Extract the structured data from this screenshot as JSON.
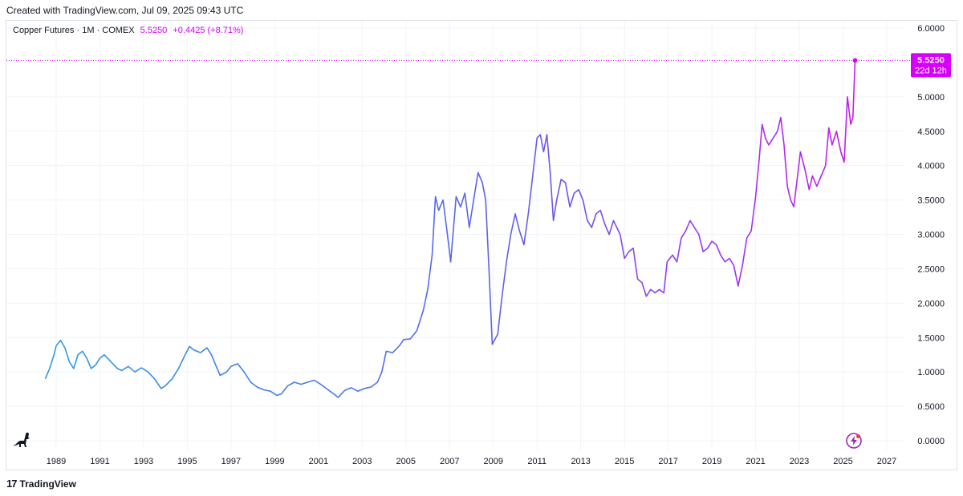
{
  "header": {
    "created_text": "Created with TradingView.com, Jul 09, 2025 09:43 UTC"
  },
  "legend": {
    "symbol": "Copper Futures · 1M · COMEX",
    "price": "5.5250",
    "change": "+0.4425 (+8.71%)"
  },
  "price_label": {
    "price": "5.5250",
    "countdown": "22d 12h"
  },
  "footer": {
    "brand": "TradingView",
    "logo_text": "17"
  },
  "colors": {
    "line_start": "#2e9be6",
    "line_mid": "#5b63ec",
    "line_end": "#c31cf5",
    "price_tag": "#d500f9",
    "grid": "#f0f3fa",
    "axis_text": "#131722"
  },
  "icons": [
    "dino-icon",
    "flash-icon"
  ],
  "chart_data": {
    "type": "line",
    "title": "",
    "xlabel": "",
    "ylabel": "",
    "x_range": [
      1988.0,
      2027.8
    ],
    "ylim": [
      0,
      6
    ],
    "y_ticks": [
      "6.0000",
      "5.5000",
      "5.0000",
      "4.5000",
      "4.0000",
      "3.5000",
      "3.0000",
      "2.5000",
      "2.0000",
      "1.5000",
      "1.0000",
      "0.5000",
      "0.0000"
    ],
    "x_ticks": [
      "1989",
      "1991",
      "1993",
      "1995",
      "1997",
      "1999",
      "2001",
      "2003",
      "2005",
      "2007",
      "2009",
      "2011",
      "2013",
      "2015",
      "2017",
      "2019",
      "2021",
      "2023",
      "2025",
      "2027"
    ],
    "grid": true,
    "legend": "top-left",
    "series": [
      {
        "values": [
          [
            1988.5,
            0.9
          ],
          [
            1988.7,
            1.05
          ],
          [
            1988.9,
            1.25
          ],
          [
            1989.0,
            1.38
          ],
          [
            1989.2,
            1.46
          ],
          [
            1989.4,
            1.35
          ],
          [
            1989.6,
            1.15
          ],
          [
            1989.8,
            1.05
          ],
          [
            1990.0,
            1.25
          ],
          [
            1990.2,
            1.3
          ],
          [
            1990.4,
            1.2
          ],
          [
            1990.6,
            1.05
          ],
          [
            1990.8,
            1.1
          ],
          [
            1991.0,
            1.2
          ],
          [
            1991.2,
            1.25
          ],
          [
            1991.5,
            1.15
          ],
          [
            1991.8,
            1.05
          ],
          [
            1992.0,
            1.02
          ],
          [
            1992.3,
            1.08
          ],
          [
            1992.6,
            1.0
          ],
          [
            1992.9,
            1.06
          ],
          [
            1993.2,
            1.0
          ],
          [
            1993.5,
            0.9
          ],
          [
            1993.8,
            0.76
          ],
          [
            1994.0,
            0.8
          ],
          [
            1994.3,
            0.9
          ],
          [
            1994.6,
            1.05
          ],
          [
            1994.9,
            1.25
          ],
          [
            1995.1,
            1.37
          ],
          [
            1995.3,
            1.32
          ],
          [
            1995.6,
            1.28
          ],
          [
            1995.9,
            1.35
          ],
          [
            1996.1,
            1.25
          ],
          [
            1996.3,
            1.1
          ],
          [
            1996.5,
            0.95
          ],
          [
            1996.8,
            1.0
          ],
          [
            1997.0,
            1.08
          ],
          [
            1997.3,
            1.12
          ],
          [
            1997.6,
            1.0
          ],
          [
            1997.9,
            0.85
          ],
          [
            1998.2,
            0.78
          ],
          [
            1998.5,
            0.74
          ],
          [
            1998.8,
            0.72
          ],
          [
            1999.1,
            0.66
          ],
          [
            1999.3,
            0.68
          ],
          [
            1999.6,
            0.8
          ],
          [
            1999.9,
            0.85
          ],
          [
            2000.2,
            0.82
          ],
          [
            2000.5,
            0.85
          ],
          [
            2000.8,
            0.88
          ],
          [
            2001.1,
            0.82
          ],
          [
            2001.4,
            0.75
          ],
          [
            2001.7,
            0.68
          ],
          [
            2001.9,
            0.63
          ],
          [
            2002.2,
            0.73
          ],
          [
            2002.5,
            0.77
          ],
          [
            2002.8,
            0.72
          ],
          [
            2003.1,
            0.76
          ],
          [
            2003.4,
            0.78
          ],
          [
            2003.7,
            0.85
          ],
          [
            2003.9,
            1.0
          ],
          [
            2004.1,
            1.3
          ],
          [
            2004.4,
            1.28
          ],
          [
            2004.7,
            1.38
          ],
          [
            2004.9,
            1.47
          ],
          [
            2005.2,
            1.48
          ],
          [
            2005.5,
            1.6
          ],
          [
            2005.8,
            1.9
          ],
          [
            2006.0,
            2.2
          ],
          [
            2006.2,
            2.7
          ],
          [
            2006.35,
            3.55
          ],
          [
            2006.5,
            3.35
          ],
          [
            2006.7,
            3.5
          ],
          [
            2006.9,
            3.0
          ],
          [
            2007.05,
            2.6
          ],
          [
            2007.3,
            3.55
          ],
          [
            2007.5,
            3.4
          ],
          [
            2007.7,
            3.6
          ],
          [
            2007.9,
            3.1
          ],
          [
            2008.1,
            3.5
          ],
          [
            2008.3,
            3.9
          ],
          [
            2008.5,
            3.75
          ],
          [
            2008.65,
            3.5
          ],
          [
            2008.8,
            2.5
          ],
          [
            2008.95,
            1.4
          ],
          [
            2009.2,
            1.55
          ],
          [
            2009.4,
            2.1
          ],
          [
            2009.6,
            2.6
          ],
          [
            2009.8,
            3.0
          ],
          [
            2010.0,
            3.3
          ],
          [
            2010.2,
            3.05
          ],
          [
            2010.4,
            2.85
          ],
          [
            2010.6,
            3.3
          ],
          [
            2010.8,
            3.85
          ],
          [
            2011.0,
            4.4
          ],
          [
            2011.15,
            4.45
          ],
          [
            2011.3,
            4.2
          ],
          [
            2011.45,
            4.45
          ],
          [
            2011.6,
            3.9
          ],
          [
            2011.75,
            3.2
          ],
          [
            2011.9,
            3.5
          ],
          [
            2012.1,
            3.8
          ],
          [
            2012.3,
            3.75
          ],
          [
            2012.5,
            3.4
          ],
          [
            2012.7,
            3.6
          ],
          [
            2012.9,
            3.65
          ],
          [
            2013.1,
            3.5
          ],
          [
            2013.3,
            3.2
          ],
          [
            2013.5,
            3.1
          ],
          [
            2013.7,
            3.3
          ],
          [
            2013.9,
            3.35
          ],
          [
            2014.1,
            3.15
          ],
          [
            2014.3,
            3.0
          ],
          [
            2014.5,
            3.2
          ],
          [
            2014.8,
            3.0
          ],
          [
            2015.0,
            2.65
          ],
          [
            2015.2,
            2.75
          ],
          [
            2015.4,
            2.8
          ],
          [
            2015.6,
            2.35
          ],
          [
            2015.8,
            2.3
          ],
          [
            2016.0,
            2.1
          ],
          [
            2016.2,
            2.2
          ],
          [
            2016.4,
            2.15
          ],
          [
            2016.6,
            2.2
          ],
          [
            2016.8,
            2.15
          ],
          [
            2016.95,
            2.6
          ],
          [
            2017.2,
            2.7
          ],
          [
            2017.4,
            2.6
          ],
          [
            2017.6,
            2.95
          ],
          [
            2017.8,
            3.05
          ],
          [
            2018.0,
            3.2
          ],
          [
            2018.2,
            3.1
          ],
          [
            2018.4,
            3.0
          ],
          [
            2018.6,
            2.75
          ],
          [
            2018.8,
            2.8
          ],
          [
            2019.0,
            2.9
          ],
          [
            2019.2,
            2.85
          ],
          [
            2019.4,
            2.7
          ],
          [
            2019.6,
            2.6
          ],
          [
            2019.8,
            2.65
          ],
          [
            2020.0,
            2.55
          ],
          [
            2020.2,
            2.25
          ],
          [
            2020.4,
            2.55
          ],
          [
            2020.6,
            2.95
          ],
          [
            2020.8,
            3.05
          ],
          [
            2021.0,
            3.55
          ],
          [
            2021.15,
            4.05
          ],
          [
            2021.3,
            4.6
          ],
          [
            2021.45,
            4.4
          ],
          [
            2021.6,
            4.3
          ],
          [
            2021.8,
            4.4
          ],
          [
            2022.0,
            4.5
          ],
          [
            2022.15,
            4.7
          ],
          [
            2022.3,
            4.3
          ],
          [
            2022.45,
            3.7
          ],
          [
            2022.6,
            3.5
          ],
          [
            2022.75,
            3.4
          ],
          [
            2022.9,
            3.8
          ],
          [
            2023.05,
            4.2
          ],
          [
            2023.25,
            3.95
          ],
          [
            2023.45,
            3.65
          ],
          [
            2023.6,
            3.85
          ],
          [
            2023.8,
            3.7
          ],
          [
            2024.0,
            3.85
          ],
          [
            2024.2,
            4.0
          ],
          [
            2024.35,
            4.55
          ],
          [
            2024.5,
            4.3
          ],
          [
            2024.7,
            4.5
          ],
          [
            2024.9,
            4.2
          ],
          [
            2025.05,
            4.05
          ],
          [
            2025.2,
            5.0
          ],
          [
            2025.35,
            4.6
          ],
          [
            2025.45,
            4.7
          ],
          [
            2025.55,
            5.53
          ]
        ]
      }
    ]
  }
}
